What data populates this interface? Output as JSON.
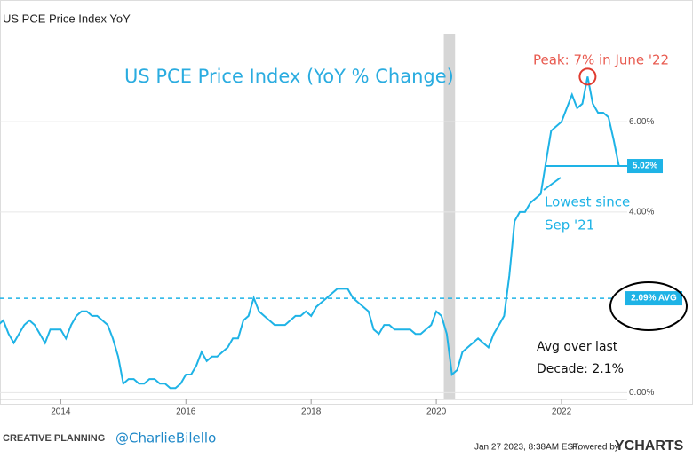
{
  "chart_data": {
    "type": "line",
    "title": "US PCE Price Index YoY",
    "annotation_title": "US PCE Price Index (YoY % Change)",
    "peak_label": "Peak: 7% in June '22",
    "peak": {
      "x": 2022.417,
      "y": 7.0
    },
    "lowest_label": [
      "Lowest since",
      "Sep '21"
    ],
    "lowest_since_x": 2021.75,
    "avg_label": [
      "Avg over last",
      "Decade: 2.1%"
    ],
    "latest": {
      "value": 5.02,
      "label": "5.02%"
    },
    "average": {
      "value": 2.09,
      "label": "2.09% AVG"
    },
    "recession": [
      2020.12,
      2020.3
    ],
    "xlim": [
      2013.03,
      2023.05
    ],
    "xticks": [
      2014,
      2016,
      2018,
      2020,
      2022
    ],
    "ylim": [
      -0.15,
      7.95
    ],
    "yticks": [
      {
        "value": 0,
        "label": "0.00%"
      },
      {
        "value": 4,
        "label": "4.00%"
      },
      {
        "value": 6,
        "label": "6.00%"
      }
    ],
    "grid": true,
    "series": [
      {
        "name": "US PCE Price Index YoY",
        "color": "#1eb3e6",
        "x": [
          2013,
          2013.083,
          2013.167,
          2013.25,
          2013.333,
          2013.417,
          2013.5,
          2013.583,
          2013.667,
          2013.75,
          2013.833,
          2013.917,
          2014,
          2014.083,
          2014.167,
          2014.25,
          2014.333,
          2014.417,
          2014.5,
          2014.583,
          2014.667,
          2014.75,
          2014.833,
          2014.917,
          2015,
          2015.083,
          2015.167,
          2015.25,
          2015.333,
          2015.417,
          2015.5,
          2015.583,
          2015.667,
          2015.75,
          2015.833,
          2015.917,
          2016,
          2016.083,
          2016.167,
          2016.25,
          2016.333,
          2016.417,
          2016.5,
          2016.583,
          2016.667,
          2016.75,
          2016.833,
          2016.917,
          2017,
          2017.083,
          2017.167,
          2017.25,
          2017.333,
          2017.417,
          2017.5,
          2017.583,
          2017.667,
          2017.75,
          2017.833,
          2017.917,
          2018,
          2018.083,
          2018.167,
          2018.25,
          2018.333,
          2018.417,
          2018.5,
          2018.583,
          2018.667,
          2018.75,
          2018.833,
          2018.917,
          2019,
          2019.083,
          2019.167,
          2019.25,
          2019.333,
          2019.417,
          2019.5,
          2019.583,
          2019.667,
          2019.75,
          2019.833,
          2019.917,
          2020,
          2020.083,
          2020.167,
          2020.25,
          2020.333,
          2020.417,
          2020.5,
          2020.583,
          2020.667,
          2020.75,
          2020.833,
          2020.917,
          2021,
          2021.083,
          2021.167,
          2021.25,
          2021.333,
          2021.417,
          2021.5,
          2021.583,
          2021.667,
          2021.75,
          2021.833,
          2021.917,
          2022,
          2022.083,
          2022.167,
          2022.25,
          2022.333,
          2022.417,
          2022.5,
          2022.583,
          2022.667,
          2022.75,
          2022.833,
          2022.917
        ],
        "values": [
          1.5,
          1.6,
          1.3,
          1.1,
          1.3,
          1.5,
          1.6,
          1.5,
          1.3,
          1.1,
          1.4,
          1.4,
          1.4,
          1.2,
          1.5,
          1.7,
          1.8,
          1.8,
          1.7,
          1.7,
          1.6,
          1.5,
          1.2,
          0.8,
          0.2,
          0.3,
          0.3,
          0.2,
          0.2,
          0.3,
          0.3,
          0.2,
          0.2,
          0.1,
          0.1,
          0.2,
          0.4,
          0.4,
          0.6,
          0.9,
          0.7,
          0.8,
          0.8,
          0.9,
          1.0,
          1.2,
          1.2,
          1.6,
          1.7,
          2.1,
          1.8,
          1.7,
          1.6,
          1.5,
          1.5,
          1.5,
          1.6,
          1.7,
          1.7,
          1.8,
          1.7,
          1.9,
          2.0,
          2.1,
          2.2,
          2.3,
          2.3,
          2.3,
          2.1,
          2.0,
          1.9,
          1.8,
          1.4,
          1.3,
          1.5,
          1.5,
          1.4,
          1.4,
          1.4,
          1.4,
          1.3,
          1.3,
          1.4,
          1.5,
          1.8,
          1.7,
          1.3,
          0.4,
          0.5,
          0.9,
          1.0,
          1.1,
          1.2,
          1.1,
          1.0,
          1.3,
          1.5,
          1.7,
          2.6,
          3.8,
          4.0,
          4.0,
          4.2,
          4.3,
          4.4,
          5.1,
          5.8,
          5.9,
          6.0,
          6.3,
          6.6,
          6.3,
          6.4,
          7.0,
          6.4,
          6.2,
          6.2,
          6.1,
          5.6,
          5.02
        ]
      }
    ],
    "footer": {
      "brand": "CREATIVE PLANNING",
      "handle": "@CharlieBilello",
      "timestamp": "Jan 27 2023, 8:38AM EST.",
      "powered": "Powered by",
      "ycharts": "YCHARTS"
    }
  }
}
